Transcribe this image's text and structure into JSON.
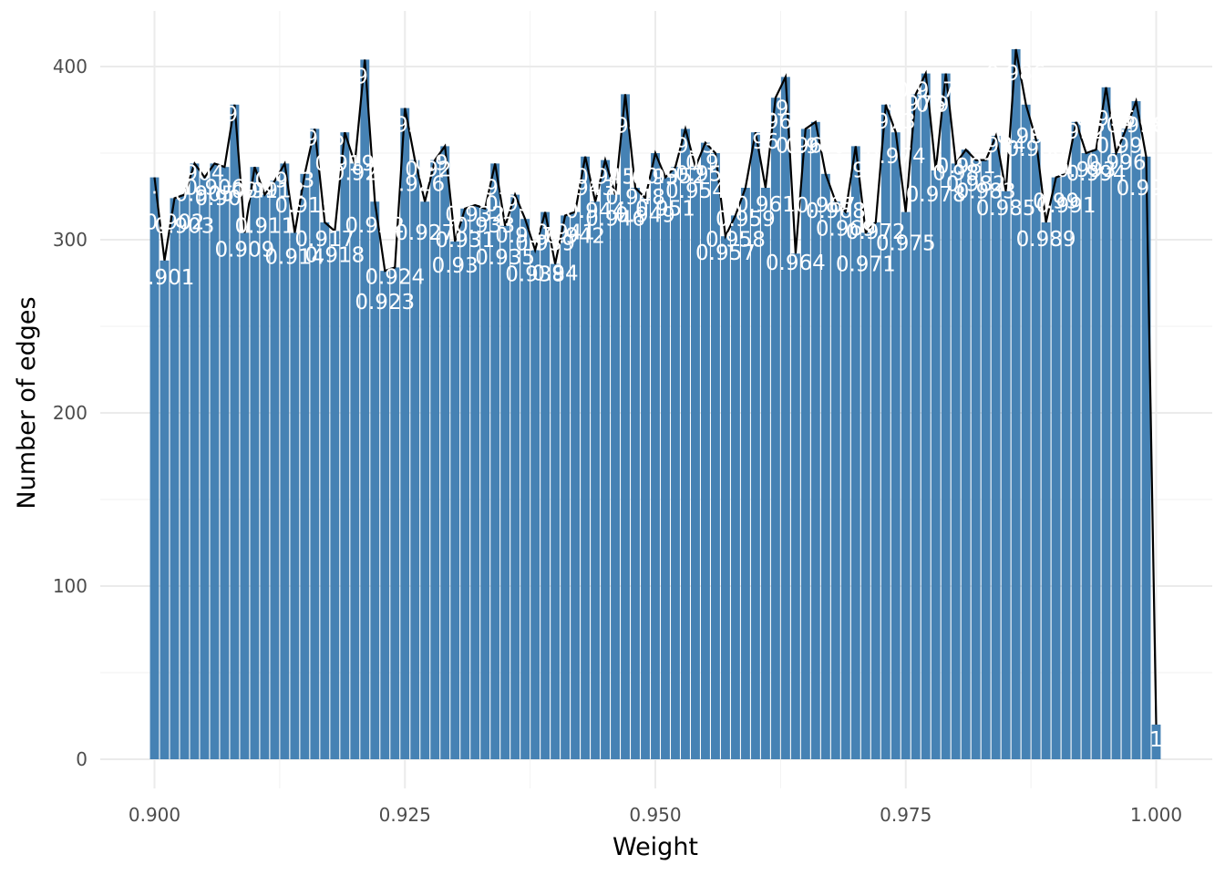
{
  "chart_data": {
    "type": "bar",
    "title": "",
    "xlabel": "Weight",
    "ylabel": "Number of edges",
    "xlim": [
      0.8965,
      1.002
    ],
    "ylim": [
      0,
      400
    ],
    "x_ticks": [
      "0.900",
      "0.925",
      "0.950",
      "0.975",
      "1.000"
    ],
    "x_tick_values": [
      0.9,
      0.925,
      0.95,
      0.975,
      1.0
    ],
    "y_ticks": [
      "0",
      "100",
      "200",
      "300",
      "400"
    ],
    "y_tick_values": [
      0,
      100,
      200,
      300,
      400
    ],
    "grid": true,
    "legend": "none",
    "bar_color": "#4682b4",
    "line_color": "#000000",
    "x": [
      0.9,
      0.901,
      0.902,
      0.903,
      0.904,
      0.905,
      0.906,
      0.907,
      0.908,
      0.909,
      0.91,
      0.911,
      0.912,
      0.913,
      0.914,
      0.915,
      0.916,
      0.917,
      0.918,
      0.919,
      0.92,
      0.921,
      0.922,
      0.923,
      0.924,
      0.925,
      0.926,
      0.927,
      0.928,
      0.929,
      0.93,
      0.931,
      0.932,
      0.933,
      0.934,
      0.935,
      0.936,
      0.937,
      0.938,
      0.939,
      0.94,
      0.941,
      0.942,
      0.943,
      0.944,
      0.945,
      0.946,
      0.947,
      0.948,
      0.949,
      0.95,
      0.951,
      0.952,
      0.953,
      0.954,
      0.955,
      0.956,
      0.957,
      0.958,
      0.959,
      0.96,
      0.961,
      0.962,
      0.963,
      0.964,
      0.965,
      0.966,
      0.967,
      0.968,
      0.969,
      0.97,
      0.971,
      0.972,
      0.973,
      0.974,
      0.975,
      0.976,
      0.977,
      0.978,
      0.979,
      0.98,
      0.981,
      0.982,
      0.983,
      0.984,
      0.985,
      0.986,
      0.987,
      0.988,
      0.989,
      0.99,
      0.991,
      0.992,
      0.993,
      0.994,
      0.995,
      0.996,
      0.997,
      0.998,
      0.999,
      1.0
    ],
    "values": [
      336,
      288,
      324,
      326,
      344,
      336,
      344,
      342,
      378,
      304,
      342,
      326,
      334,
      344,
      304,
      338,
      364,
      310,
      305,
      362,
      344,
      404,
      322,
      282,
      284,
      376,
      346,
      322,
      346,
      354,
      299,
      318,
      320,
      318,
      344,
      308,
      326,
      312,
      294,
      316,
      286,
      314,
      316,
      348,
      322,
      346,
      326,
      384,
      330,
      324,
      350,
      336,
      342,
      364,
      342,
      356,
      350,
      302,
      314,
      330,
      362,
      330,
      382,
      394,
      292,
      364,
      368,
      338,
      322,
      316,
      354,
      304,
      310,
      378,
      362,
      316,
      384,
      396,
      340,
      396,
      344,
      352,
      346,
      346,
      360,
      328,
      410,
      378,
      358,
      310,
      336,
      338,
      368,
      350,
      352,
      388,
      350,
      364,
      380,
      348,
      20
    ],
    "labels": [
      "0.9",
      "0.901",
      "0.902",
      "0.903",
      "0.904",
      "0.905",
      "0.906",
      "0.907",
      "0.908",
      "0.909",
      "0.91",
      "0.911",
      "0.912",
      "0.913",
      "0.914",
      "0.915",
      "0.916",
      "0.917",
      "0.918",
      "0.919",
      "0.92",
      "0.921",
      "0.922",
      "0.923",
      "0.924",
      "0.925",
      "0.926",
      "0.927",
      "0.928",
      "0.929",
      "0.93",
      "0.931",
      "0.932",
      "0.933",
      "0.934",
      "0.935",
      "0.936",
      "0.937",
      "0.938",
      "0.939",
      "0.94",
      "0.941",
      "0.942",
      "0.943",
      "0.944",
      "0.945",
      "0.946",
      "0.947",
      "0.948",
      "0.949",
      "0.95",
      "0.951",
      "0.952",
      "0.953",
      "0.954",
      "0.955",
      "0.956",
      "0.957",
      "0.958",
      "0.959",
      "0.96",
      "0.961",
      "0.962",
      "0.963",
      "0.964",
      "0.965",
      "0.966",
      "0.967",
      "0.968",
      "0.969",
      "0.97",
      "0.971",
      "0.972",
      "0.973",
      "0.974",
      "0.975",
      "0.976",
      "0.977",
      "0.978",
      "0.979",
      "0.98",
      "0.981",
      "0.982",
      "0.983",
      "0.984",
      "0.985",
      "0.986",
      "0.987",
      "0.988",
      "0.989",
      "0.99",
      "0.991",
      "0.992",
      "0.993",
      "0.994",
      "0.995",
      "0.996",
      "0.997",
      "0.998",
      "0.999",
      "1"
    ]
  }
}
